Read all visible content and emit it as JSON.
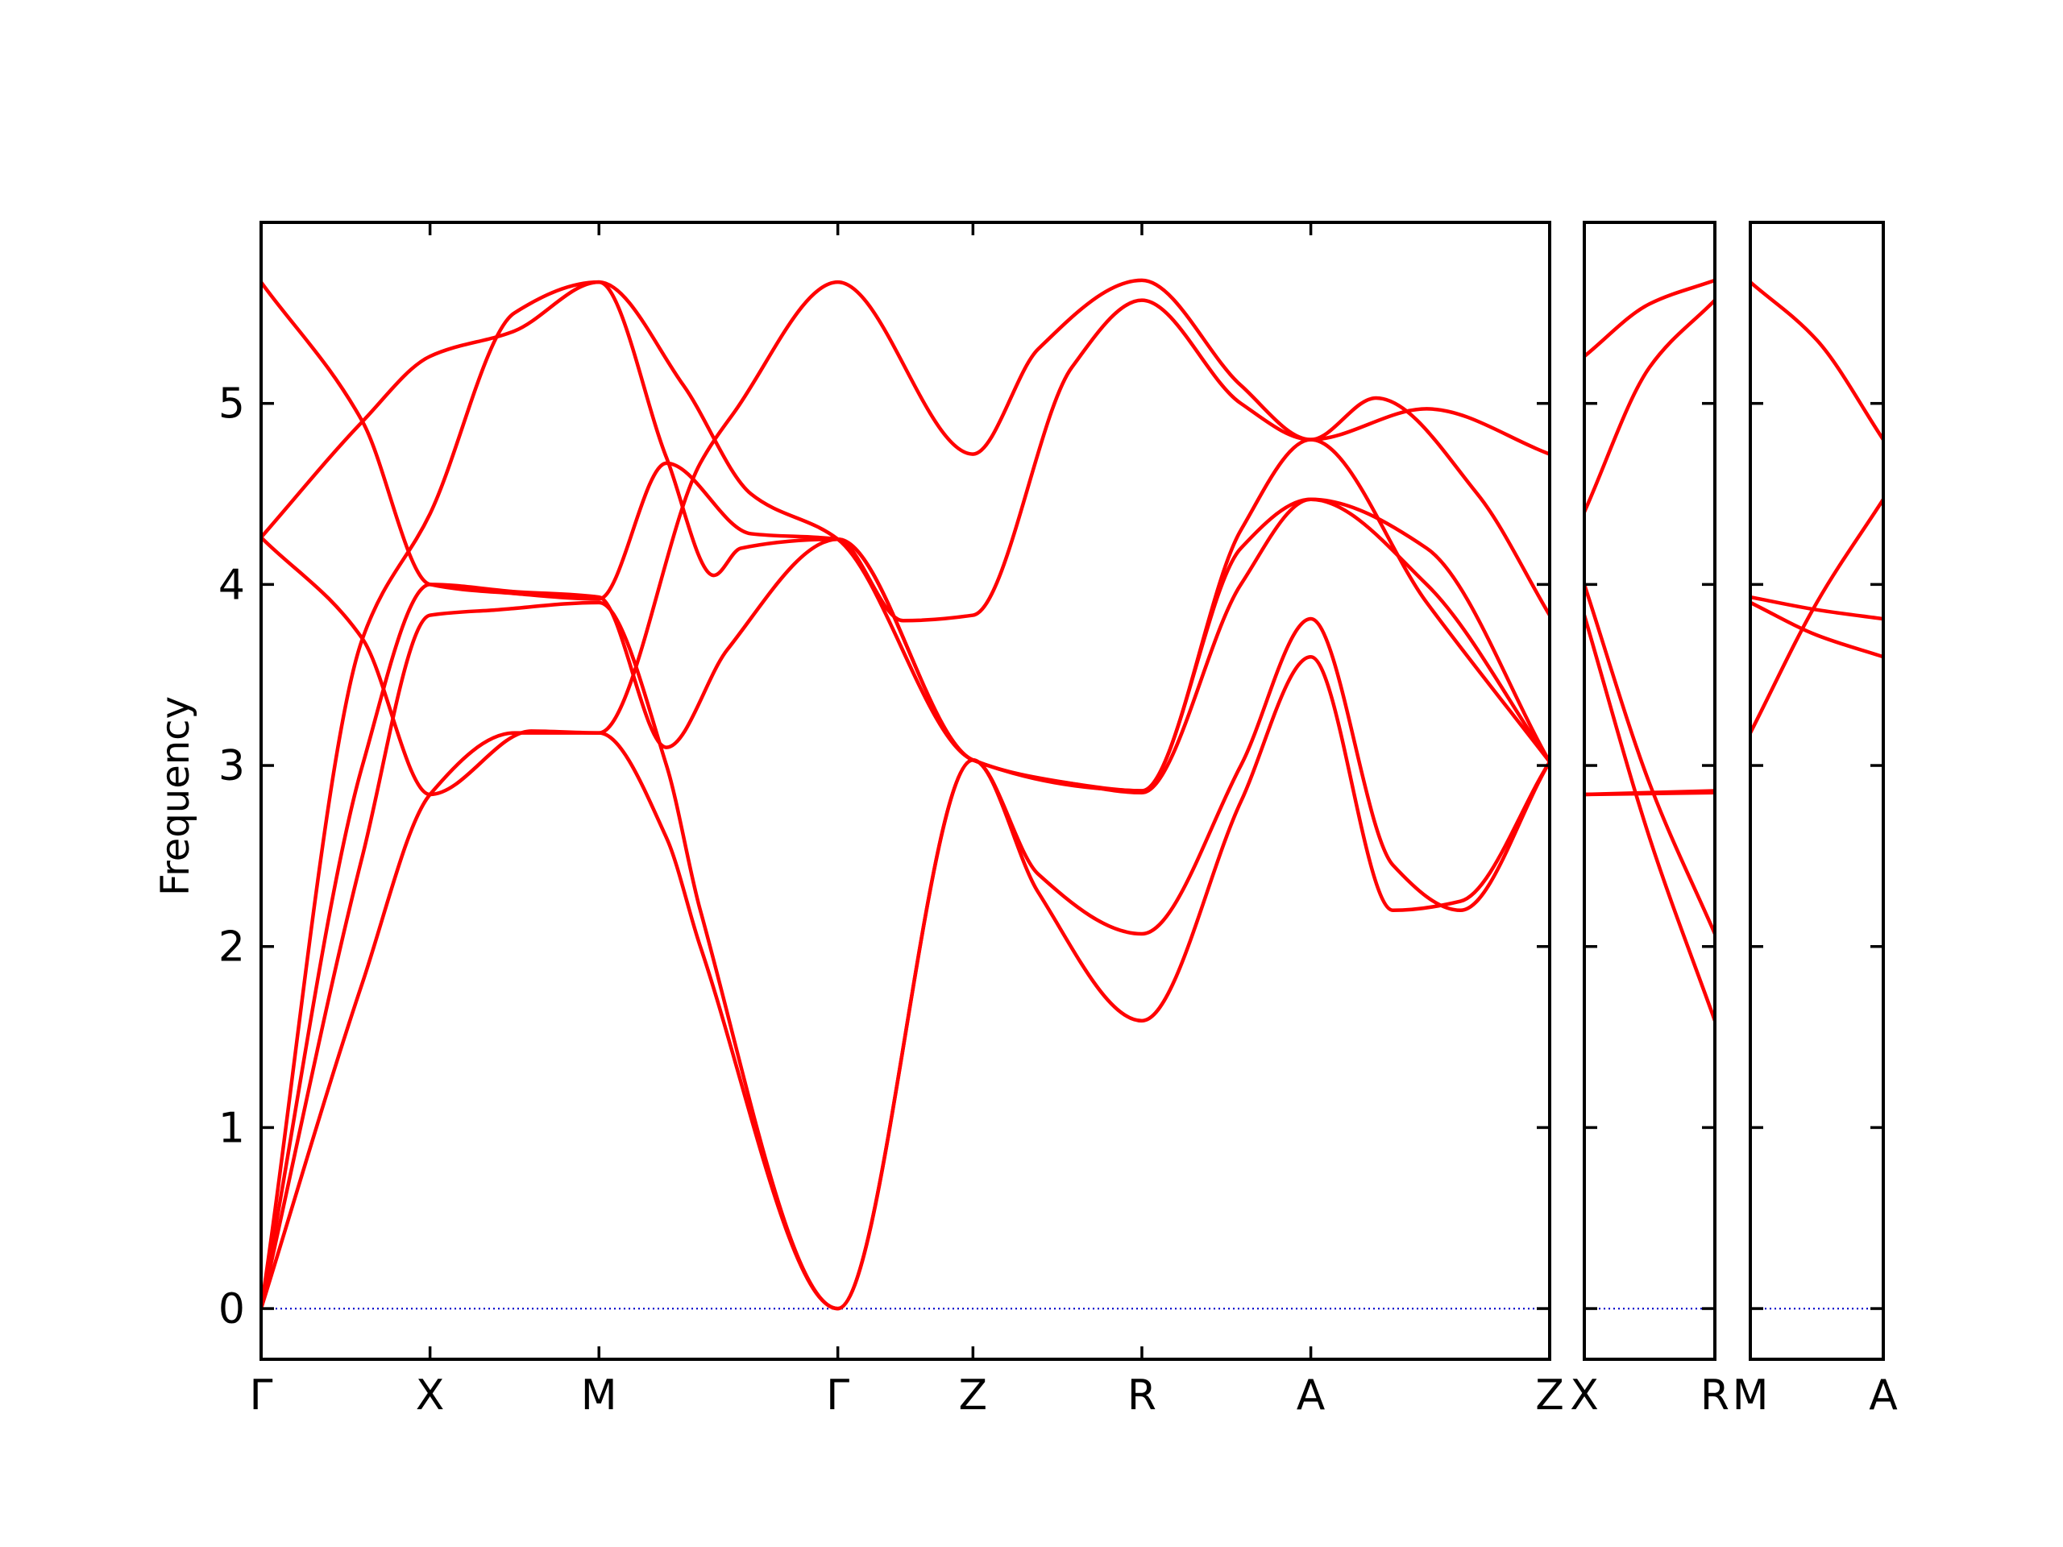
{
  "chart_data": {
    "type": "line",
    "ylabel": "Frequency",
    "ylim": [
      -0.28,
      6.0
    ],
    "yticks": [
      0,
      1,
      2,
      3,
      4,
      5
    ],
    "grid": false,
    "colors": {
      "bands": "#ff0000",
      "zero_line": "#0000cc",
      "frame": "#000000"
    },
    "panels": [
      {
        "points": [
          {
            "label": "Γ",
            "x": 0
          },
          {
            "label": "X",
            "x": 0.5
          },
          {
            "label": "M",
            "x": 1.0
          },
          {
            "label": "Γ",
            "x": 1.707
          },
          {
            "label": "Z",
            "x": 2.107
          },
          {
            "label": "R",
            "x": 2.607
          },
          {
            "label": "A",
            "x": 3.107
          },
          {
            "label": "Z",
            "x": 3.814
          }
        ],
        "xlim": [
          0,
          3.814
        ],
        "series": [
          {
            "x": [
              0,
              0.3,
              0.5,
              0.7,
              1.0,
              1.2,
              1.3,
              1.707,
              2.107,
              2.3,
              2.607,
              2.9,
              3.107,
              3.35,
              3.55,
              3.814
            ],
            "y": [
              0,
              2.5,
              3.83,
              3.86,
              3.9,
              3.0,
              2.2,
              0,
              3.03,
              2.3,
              1.59,
              2.8,
              3.6,
              2.2,
              2.25,
              3.02
            ]
          },
          {
            "x": [
              0,
              0.3,
              0.5,
              0.75,
              1.0,
              1.2,
              1.3,
              1.707,
              2.107,
              2.3,
              2.607,
              2.9,
              3.107,
              3.35,
              3.55,
              3.814
            ],
            "y": [
              0,
              1.8,
              2.84,
              3.18,
              3.18,
              2.6,
              2.0,
              0,
              3.03,
              2.4,
              2.07,
              3.0,
              3.81,
              2.45,
              2.2,
              3.02
            ]
          },
          {
            "x": [
              0,
              0.3,
              0.5,
              0.75,
              1.0,
              1.2,
              1.34,
              1.42,
              1.707,
              2.107,
              2.4,
              2.607,
              2.9,
              3.107,
              3.45,
              3.814
            ],
            "y": [
              0,
              3.7,
              4.39,
              5.5,
              5.67,
              4.7,
              4.05,
              4.2,
              4.25,
              3.03,
              2.9,
              2.85,
              4.0,
              4.47,
              4.2,
              3.02
            ]
          },
          {
            "x": [
              0,
              0.3,
              0.5,
              0.75,
              1.0,
              1.2,
              1.38,
              1.707,
              2.107,
              2.4,
              2.607,
              2.9,
              3.107,
              3.45,
              3.814
            ],
            "y": [
              0,
              3.0,
              4.0,
              3.96,
              3.93,
              3.1,
              3.64,
              4.25,
              3.03,
              2.9,
              2.86,
              4.2,
              4.47,
              4.0,
              3.02
            ]
          },
          {
            "x": [
              0,
              0.3,
              0.5,
              0.8,
              1.0,
              1.3,
              1.4,
              1.707,
              2.107,
              2.3,
              2.607,
              2.9,
              3.107,
              3.45,
              3.814
            ],
            "y": [
              4.26,
              3.7,
              2.84,
              3.19,
              3.18,
              4.67,
              4.95,
              5.67,
              4.72,
              5.3,
              5.68,
              5.1,
              4.8,
              4.97,
              4.72
            ]
          },
          {
            "x": [
              0,
              0.3,
              0.5,
              0.75,
              1.0,
              1.2,
              1.45,
              1.707,
              1.9,
              2.107,
              2.4,
              2.607,
              2.9,
              3.107,
              3.3,
              3.6,
              3.814
            ],
            "y": [
              5.67,
              4.9,
              4.0,
              3.95,
              3.92,
              4.67,
              4.28,
              4.25,
              3.8,
              3.83,
              5.2,
              5.57,
              5.0,
              4.8,
              5.03,
              4.5,
              3.83
            ]
          },
          {
            "x": [
              0,
              0.3,
              0.5,
              0.75,
              1.0,
              1.25,
              1.45,
              1.707,
              2.107,
              2.5,
              2.607,
              2.9,
              3.107,
              3.45,
              3.814
            ],
            "y": [
              4.26,
              4.9,
              5.26,
              5.4,
              5.67,
              5.1,
              4.5,
              4.25,
              3.03,
              2.87,
              2.86,
              4.3,
              4.8,
              3.9,
              3.02
            ]
          }
        ]
      },
      {
        "points": [
          {
            "label": "X",
            "x": 0
          },
          {
            "label": "R",
            "x": 0.5
          }
        ],
        "xlim": [
          0,
          0.5
        ],
        "series": [
          {
            "x": [
              0,
              0.25,
              0.5
            ],
            "y": [
              5.26,
              5.55,
              5.68
            ]
          },
          {
            "x": [
              0,
              0.25,
              0.5
            ],
            "y": [
              4.4,
              5.2,
              5.57
            ]
          },
          {
            "x": [
              0,
              0.25,
              0.5
            ],
            "y": [
              4.0,
              2.9,
              2.07
            ]
          },
          {
            "x": [
              0,
              0.25,
              0.5
            ],
            "y": [
              3.83,
              2.6,
              1.59
            ]
          },
          {
            "x": [
              0,
              0.5
            ],
            "y": [
              2.84,
              2.85
            ]
          },
          {
            "x": [
              0,
              0.5
            ],
            "y": [
              2.84,
              2.86
            ]
          }
        ]
      },
      {
        "points": [
          {
            "label": "M",
            "x": 0
          },
          {
            "label": "A",
            "x": 0.5
          }
        ],
        "xlim": [
          0,
          0.5
        ],
        "series": [
          {
            "x": [
              0,
              0.25,
              0.5
            ],
            "y": [
              5.67,
              5.35,
              4.8
            ]
          },
          {
            "x": [
              0,
              0.25,
              0.5
            ],
            "y": [
              3.18,
              3.9,
              4.47
            ]
          },
          {
            "x": [
              0,
              0.25,
              0.5
            ],
            "y": [
              3.93,
              3.86,
              3.81
            ]
          },
          {
            "x": [
              0,
              0.25,
              0.5
            ],
            "y": [
              3.9,
              3.72,
              3.6
            ]
          }
        ]
      }
    ]
  }
}
